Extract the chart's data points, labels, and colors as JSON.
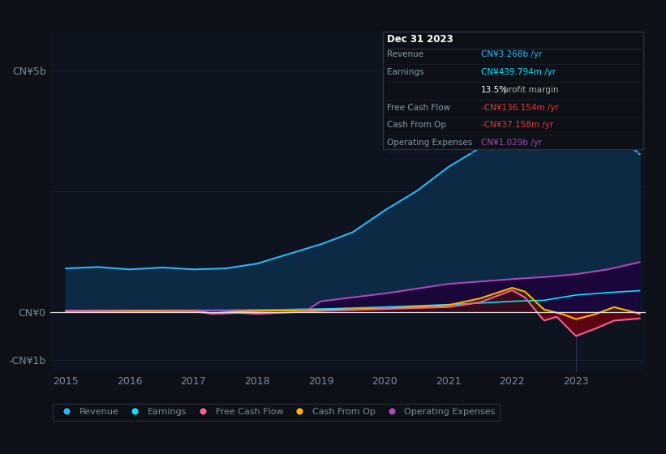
{
  "background_color": "#0d1117",
  "plot_bg_color": "#0d1420",
  "ylabel_top": "CN¥5b",
  "ylabel_zero": "CN¥0",
  "ylabel_bottom": "-CN¥1b",
  "revenue_color": "#29b6f6",
  "revenue_fill": "#0d2a45",
  "earnings_color": "#00e5ff",
  "earnings_fill": "#003344",
  "free_cash_flow_color": "#f06292",
  "cash_from_op_color": "#ffb300",
  "operating_expenses_color": "#ab47bc",
  "operating_expenses_fill": "#2d0050",
  "neg_fill_color": "#5a0010",
  "grid_color": "#1a2535",
  "text_color": "#7a8a9a",
  "zero_line_color": "#dddddd",
  "legend_labels": [
    "Revenue",
    "Earnings",
    "Free Cash Flow",
    "Cash From Op",
    "Operating Expenses"
  ],
  "legend_colors": [
    "#29b6f6",
    "#00e5ff",
    "#f06292",
    "#ffb300",
    "#ab47bc"
  ],
  "box_bg": "#0d1117",
  "box_border": "#2a3040",
  "table_rows": [
    {
      "label": "Revenue",
      "value": "CN¥3.268b /yr",
      "val_color": "#29b6f6",
      "extra": null,
      "extra_color": null
    },
    {
      "label": "Earnings",
      "value": "CN¥439.794m /yr",
      "val_color": "#00e5ff",
      "extra": null,
      "extra_color": null
    },
    {
      "label": "",
      "value": "13.5%",
      "val_color": "#ffffff",
      "extra": " profit margin",
      "extra_color": "#aaaaaa"
    },
    {
      "label": "Free Cash Flow",
      "value": "-CN¥136.154m /yr",
      "val_color": "#e53935",
      "extra": null,
      "extra_color": null
    },
    {
      "label": "Cash From Op",
      "value": "-CN¥37.158m /yr",
      "val_color": "#e53935",
      "extra": null,
      "extra_color": null
    },
    {
      "label": "Operating Expenses",
      "value": "CN¥1.029b /yr",
      "val_color": "#ab47bc",
      "extra": null,
      "extra_color": null
    }
  ]
}
